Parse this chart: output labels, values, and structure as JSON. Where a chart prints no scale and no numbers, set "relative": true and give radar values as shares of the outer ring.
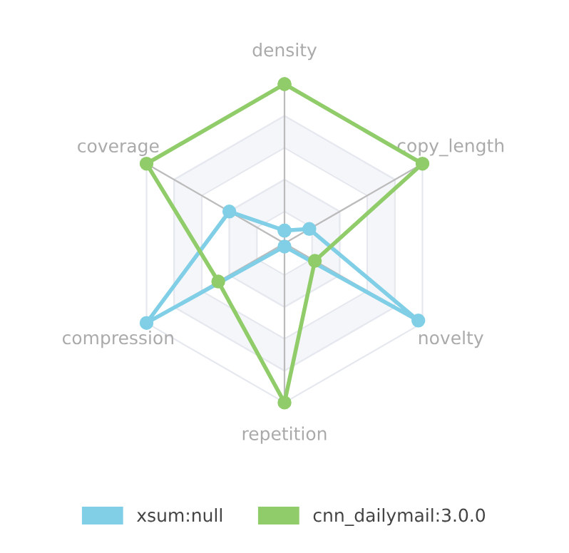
{
  "chart_data": {
    "type": "radar",
    "relative": true,
    "categories": [
      "density",
      "copy_length",
      "novelty",
      "repetition",
      "compression",
      "coverage"
    ],
    "series": [
      {
        "name": "xsum:null",
        "color": "#80cfe6",
        "values": [
          0.08,
          0.18,
          0.97,
          0.02,
          1.0,
          0.4
        ]
      },
      {
        "name": "cnn_dailymail:3.0.0",
        "color": "#91cc6a",
        "values": [
          1.0,
          1.0,
          0.22,
          1.0,
          0.48,
          1.0
        ]
      }
    ],
    "marker": "circle",
    "legend": "bottom"
  }
}
